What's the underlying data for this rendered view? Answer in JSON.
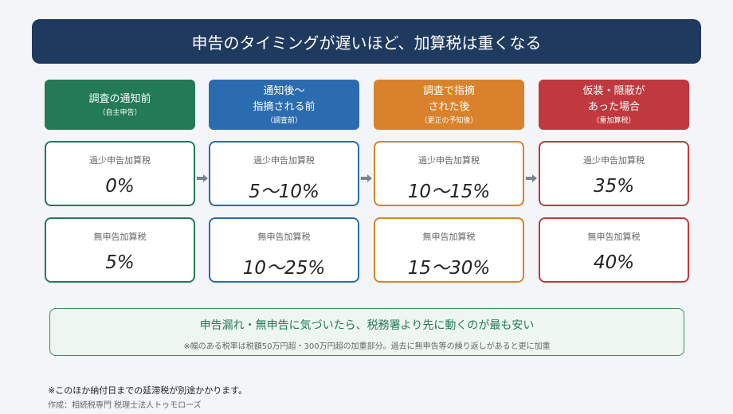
{
  "header": {
    "title": "申告のタイミングが遅いほど、加算税は重くなる"
  },
  "columns": [
    {
      "title": [
        "調査の通知前"
      ],
      "subtitle": "（自主申告）",
      "rows": [
        {
          "label": "過少申告加算税",
          "value": "0%"
        },
        {
          "label": "無申告加算税",
          "value": "5%"
        }
      ]
    },
    {
      "title": [
        "通知後～",
        "指摘される前"
      ],
      "subtitle": "（調査前）",
      "rows": [
        {
          "label": "過少申告加算税",
          "value": "5～10%"
        },
        {
          "label": "無申告加算税",
          "value": "10～25%"
        }
      ]
    },
    {
      "title": [
        "調査で指摘",
        "された後"
      ],
      "subtitle": "（更正の予知後）",
      "rows": [
        {
          "label": "過少申告加算税",
          "value": "10～15%"
        },
        {
          "label": "無申告加算税",
          "value": "15～30%"
        }
      ]
    },
    {
      "title": [
        "仮装・隠蔽が",
        "あった場合"
      ],
      "subtitle": "（重加算税）",
      "rows": [
        {
          "label": "過少申告加算税",
          "value": "35%"
        },
        {
          "label": "無申告加算税",
          "value": "40%"
        }
      ]
    }
  ],
  "note": {
    "headline": "申告漏れ・無申告に気づいたら、税務署より先に動くのが最も安い",
    "detail": "※幅のある税率は税額50万円超・300万円超の加重部分。過去に無申告等の繰り返しがあると更に加重"
  },
  "footer": {
    "remark": "※このほか納付日までの延滞税が別途かかります。",
    "credit": "作成：相続税専門 税理士法人トゥモローズ"
  }
}
